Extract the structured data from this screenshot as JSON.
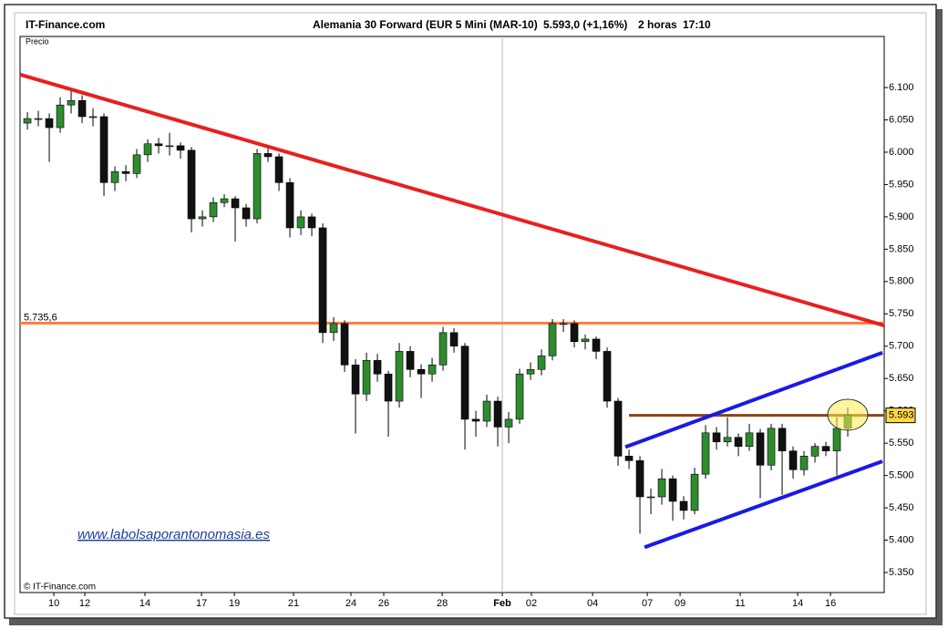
{
  "chart_data": {
    "type": "candlestick",
    "source": "IT-Finance.com",
    "title": "Alemania 30 Forward (EUR 5 Mini (MAR-10)",
    "last": "5.593,0 (+1,16%)",
    "timeframe": "2 horas",
    "time": "17:10",
    "ylabel": "Precio",
    "watermark": "www.labolsaporantonomasia.es",
    "copyright": "© IT-Finance.com",
    "up_color": "#2e8b2e",
    "down_color": "#111111",
    "ohlc": [
      [
        6045,
        6062,
        6035,
        6052
      ],
      [
        6052,
        6064,
        6040,
        6052
      ],
      [
        6052,
        6060,
        5985,
        6038
      ],
      [
        6038,
        6085,
        6030,
        6073
      ],
      [
        6073,
        6095,
        6060,
        6080
      ],
      [
        6080,
        6088,
        6045,
        6055
      ],
      [
        6055,
        6068,
        6040,
        6055
      ],
      [
        6055,
        6060,
        5932,
        5953
      ],
      [
        5953,
        5978,
        5940,
        5970
      ],
      [
        5970,
        5980,
        5955,
        5967
      ],
      [
        5967,
        6005,
        5960,
        5996
      ],
      [
        5996,
        6020,
        5985,
        6013
      ],
      [
        6013,
        6022,
        5998,
        6010
      ],
      [
        6010,
        6030,
        5995,
        6010
      ],
      [
        6010,
        6015,
        5990,
        6003
      ],
      [
        6003,
        6008,
        5876,
        5897
      ],
      [
        5897,
        5910,
        5885,
        5900
      ],
      [
        5900,
        5930,
        5892,
        5922
      ],
      [
        5922,
        5935,
        5915,
        5928
      ],
      [
        5928,
        5932,
        5862,
        5914
      ],
      [
        5914,
        5920,
        5885,
        5897
      ],
      [
        5897,
        6005,
        5890,
        5998
      ],
      [
        5998,
        6008,
        5985,
        5993
      ],
      [
        5993,
        5998,
        5940,
        5953
      ],
      [
        5953,
        5960,
        5868,
        5883
      ],
      [
        5883,
        5910,
        5872,
        5900
      ],
      [
        5900,
        5905,
        5870,
        5883
      ],
      [
        5883,
        5890,
        5705,
        5721
      ],
      [
        5721,
        5745,
        5708,
        5735
      ],
      [
        5735,
        5740,
        5660,
        5671
      ],
      [
        5671,
        5680,
        5565,
        5626
      ],
      [
        5626,
        5690,
        5615,
        5678
      ],
      [
        5678,
        5688,
        5645,
        5657
      ],
      [
        5657,
        5662,
        5560,
        5615
      ],
      [
        5615,
        5705,
        5605,
        5692
      ],
      [
        5692,
        5700,
        5652,
        5664
      ],
      [
        5664,
        5672,
        5620,
        5657
      ],
      [
        5657,
        5682,
        5645,
        5671
      ],
      [
        5671,
        5730,
        5662,
        5721
      ],
      [
        5721,
        5728,
        5690,
        5700
      ],
      [
        5700,
        5705,
        5540,
        5587
      ],
      [
        5587,
        5600,
        5560,
        5584
      ],
      [
        5584,
        5625,
        5575,
        5615
      ],
      [
        5615,
        5622,
        5545,
        5575
      ],
      [
        5575,
        5598,
        5550,
        5587
      ],
      [
        5587,
        5665,
        5580,
        5657
      ],
      [
        5657,
        5675,
        5648,
        5664
      ],
      [
        5664,
        5695,
        5655,
        5685
      ],
      [
        5685,
        5742,
        5678,
        5735
      ],
      [
        5735,
        5742,
        5722,
        5735
      ],
      [
        5735,
        5740,
        5698,
        5707
      ],
      [
        5707,
        5718,
        5695,
        5711
      ],
      [
        5711,
        5715,
        5680,
        5692
      ],
      [
        5692,
        5698,
        5605,
        5615
      ],
      [
        5615,
        5620,
        5515,
        5530
      ],
      [
        5530,
        5540,
        5510,
        5523
      ],
      [
        5523,
        5530,
        5410,
        5467
      ],
      [
        5467,
        5480,
        5440,
        5467
      ],
      [
        5467,
        5510,
        5455,
        5495
      ],
      [
        5495,
        5500,
        5430,
        5460
      ],
      [
        5460,
        5468,
        5432,
        5446
      ],
      [
        5446,
        5512,
        5440,
        5502
      ],
      [
        5502,
        5578,
        5495,
        5566
      ],
      [
        5566,
        5575,
        5540,
        5552
      ],
      [
        5552,
        5590,
        5545,
        5559
      ],
      [
        5559,
        5565,
        5530,
        5545
      ],
      [
        5545,
        5580,
        5538,
        5566
      ],
      [
        5566,
        5572,
        5465,
        5516
      ],
      [
        5516,
        5580,
        5508,
        5573
      ],
      [
        5573,
        5580,
        5470,
        5538
      ],
      [
        5538,
        5545,
        5495,
        5509
      ],
      [
        5509,
        5538,
        5500,
        5530
      ],
      [
        5530,
        5550,
        5520,
        5545
      ],
      [
        5545,
        5552,
        5530,
        5538
      ],
      [
        5538,
        5590,
        5500,
        5573
      ],
      [
        5573,
        5605,
        5560,
        5593
      ]
    ],
    "xlim": [
      -0.67,
      78.33
    ],
    "xticks": [
      {
        "value": 2.42,
        "label": "10"
      },
      {
        "value": 5.25,
        "label": "12"
      },
      {
        "value": 10.75,
        "label": "14"
      },
      {
        "value": 15.92,
        "label": "17"
      },
      {
        "value": 18.92,
        "label": "19"
      },
      {
        "value": 24.33,
        "label": "21"
      },
      {
        "value": 29.58,
        "label": "24"
      },
      {
        "value": 32.58,
        "label": "26"
      },
      {
        "value": 37.92,
        "label": "28"
      },
      {
        "value": 43.42,
        "label": "Feb"
      },
      {
        "value": 46.08,
        "label": "02"
      },
      {
        "value": 51.67,
        "label": "04"
      },
      {
        "value": 56.67,
        "label": "07"
      },
      {
        "value": 59.67,
        "label": "09"
      },
      {
        "value": 65.17,
        "label": "11"
      },
      {
        "value": 70.42,
        "label": "14"
      },
      {
        "value": 73.42,
        "label": "16"
      }
    ],
    "ylim": [
      5319,
      6179
    ],
    "yticks": [
      {
        "value": 5350,
        "label": "5.350"
      },
      {
        "value": 5400,
        "label": "5.400"
      },
      {
        "value": 5450,
        "label": "5.450"
      },
      {
        "value": 5500,
        "label": "5.500"
      },
      {
        "value": 5550,
        "label": "5.550"
      },
      {
        "value": 5600,
        "label": "5.600"
      },
      {
        "value": 5650,
        "label": "5.650"
      },
      {
        "value": 5700,
        "label": "5.700"
      },
      {
        "value": 5750,
        "label": "5.750"
      },
      {
        "value": 5800,
        "label": "5.800"
      },
      {
        "value": 5850,
        "label": "5.850"
      },
      {
        "value": 5900,
        "label": "5.900"
      },
      {
        "value": 5950,
        "label": "5.950"
      },
      {
        "value": 6000,
        "label": "6.000"
      },
      {
        "value": 6050,
        "label": "6.050"
      },
      {
        "value": 6100,
        "label": "6.100"
      }
    ],
    "levels": [
      {
        "value": 5735.6,
        "label": "5.735,6",
        "color": "#ff7f3f",
        "side": "left"
      },
      {
        "value": 5593,
        "label": "5.593",
        "color": "#8b4513",
        "side": "right",
        "from": 55
      }
    ],
    "trendlines": [
      {
        "color": "#e8201c",
        "x": [
          -0.67,
          78.33
        ],
        "y": [
          6120,
          5732
        ]
      },
      {
        "color": "#1a1ae6",
        "x": [
          54.67,
          78.17
        ],
        "y": [
          5544,
          5690
        ]
      },
      {
        "color": "#1a1ae6",
        "x": [
          56.42,
          78.17
        ],
        "y": [
          5389,
          5522
        ]
      }
    ]
  }
}
